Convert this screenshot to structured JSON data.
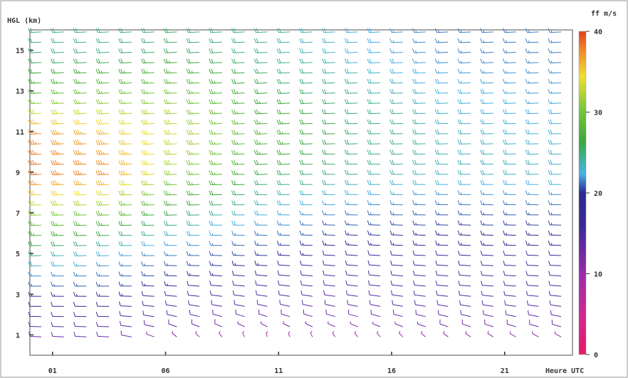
{
  "chart_data": {
    "type": "wind-barb-time-height",
    "title": "",
    "ylabel": "HGL (km)",
    "xlabel": "Heure UTC",
    "colorbar_label": "ff  m/s",
    "x_ticks": [
      "01",
      "06",
      "11",
      "16",
      "21"
    ],
    "y_ticks": [
      "1",
      "3",
      "5",
      "7",
      "9",
      "11",
      "13",
      "15"
    ],
    "x_range_hours": [
      0,
      24
    ],
    "y_range_km": [
      0,
      16
    ],
    "colorbar_ticks": [
      "0",
      "10",
      "20",
      "30",
      "40"
    ],
    "colorbar_range": [
      0,
      40
    ],
    "colorbar_colors": [
      "#e8176a",
      "#b02aa8",
      "#5a2aa8",
      "#2a2a90",
      "#46b4e8",
      "#3aa83a",
      "#7ac83a",
      "#f0e030",
      "#f08a2a",
      "#e0401e"
    ],
    "grid": false,
    "columns": [
      {
        "hour": 0.5,
        "profile": [
          [
            0.8,
            8,
            260
          ],
          [
            1.5,
            10,
            265
          ],
          [
            3,
            14,
            270
          ],
          [
            5,
            20,
            275
          ],
          [
            7,
            28,
            275
          ],
          [
            9,
            37,
            278
          ],
          [
            11,
            35,
            280
          ],
          [
            13,
            24,
            280
          ],
          [
            15,
            20,
            278
          ]
        ]
      },
      {
        "hour": 3.5,
        "profile": [
          [
            0.8,
            8,
            260
          ],
          [
            1.5,
            10,
            265
          ],
          [
            3,
            14,
            270
          ],
          [
            5,
            18,
            275
          ],
          [
            7,
            26,
            275
          ],
          [
            9,
            36,
            278
          ],
          [
            11,
            33,
            280
          ],
          [
            13,
            25,
            280
          ],
          [
            15,
            20,
            278
          ]
        ]
      },
      {
        "hour": 6.5,
        "profile": [
          [
            0.8,
            6,
            200
          ],
          [
            1.5,
            9,
            230
          ],
          [
            3,
            12,
            260
          ],
          [
            5,
            16,
            270
          ],
          [
            7,
            22,
            275
          ],
          [
            9,
            28,
            278
          ],
          [
            11,
            30,
            280
          ],
          [
            13,
            26,
            280
          ],
          [
            15,
            21,
            278
          ]
        ]
      },
      {
        "hour": 10.5,
        "profile": [
          [
            0.8,
            5,
            180
          ],
          [
            1.5,
            7,
            220
          ],
          [
            3,
            10,
            250
          ],
          [
            5,
            14,
            265
          ],
          [
            7,
            18,
            270
          ],
          [
            9,
            22,
            275
          ],
          [
            11,
            24,
            278
          ],
          [
            13,
            22,
            280
          ],
          [
            15,
            20,
            278
          ]
        ]
      },
      {
        "hour": 14.5,
        "profile": [
          [
            0.8,
            5,
            190
          ],
          [
            1.5,
            7,
            225
          ],
          [
            3,
            9,
            250
          ],
          [
            5,
            12,
            260
          ],
          [
            7,
            16,
            268
          ],
          [
            9,
            20,
            272
          ],
          [
            11,
            21,
            275
          ],
          [
            13,
            20,
            278
          ],
          [
            15,
            18,
            278
          ]
        ]
      },
      {
        "hour": 18.5,
        "profile": [
          [
            0.8,
            6,
            200
          ],
          [
            1.5,
            8,
            230
          ],
          [
            3,
            10,
            255
          ],
          [
            5,
            12,
            262
          ],
          [
            7,
            15,
            268
          ],
          [
            9,
            19,
            272
          ],
          [
            11,
            19,
            275
          ],
          [
            13,
            18,
            278
          ],
          [
            15,
            16,
            278
          ]
        ]
      },
      {
        "hour": 22.5,
        "profile": [
          [
            0.8,
            6,
            210
          ],
          [
            1.5,
            8,
            235
          ],
          [
            3,
            10,
            258
          ],
          [
            5,
            12,
            264
          ],
          [
            7,
            15,
            268
          ],
          [
            9,
            19,
            272
          ],
          [
            11,
            18,
            275
          ],
          [
            13,
            17,
            278
          ],
          [
            15,
            16,
            278
          ]
        ]
      }
    ]
  }
}
